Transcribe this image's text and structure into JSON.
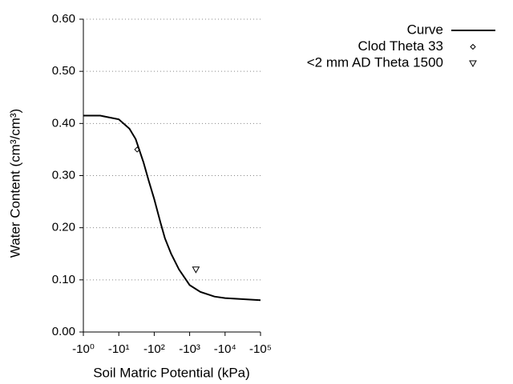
{
  "chart_data": {
    "type": "line",
    "xlabel": "Soil Matric Potential (kPa)",
    "ylabel": "Water Content (cm³/cm³)",
    "xscale": "log",
    "xlim": [
      -1,
      -100000
    ],
    "xticks": [
      {
        "value": -1,
        "label": "-10⁰"
      },
      {
        "value": -10,
        "label": "-10¹"
      },
      {
        "value": -100,
        "label": "-10²"
      },
      {
        "value": -1000,
        "label": "-10³"
      },
      {
        "value": -10000,
        "label": "-10⁴"
      },
      {
        "value": -100000,
        "label": "-10⁵"
      }
    ],
    "ylim": [
      0,
      0.6
    ],
    "yticks": [
      {
        "value": 0,
        "label": "0.00"
      },
      {
        "value": 0.1,
        "label": "0.10"
      },
      {
        "value": 0.2,
        "label": "0.20"
      },
      {
        "value": 0.3,
        "label": "0.30"
      },
      {
        "value": 0.4,
        "label": "0.40"
      },
      {
        "value": 0.5,
        "label": "0.50"
      },
      {
        "value": 0.6,
        "label": "0.60"
      }
    ],
    "grid": true,
    "legend": "right",
    "series": [
      {
        "name": "Curve",
        "color": "#000000",
        "marker": "none",
        "x": [
          -1,
          -3,
          -10,
          -20,
          -30,
          -50,
          -70,
          -100,
          -150,
          -200,
          -300,
          -500,
          -1000,
          -2000,
          -5000,
          -10000,
          -100000
        ],
        "values": [
          0.415,
          0.415,
          0.408,
          0.39,
          0.37,
          0.325,
          0.29,
          0.255,
          0.21,
          0.18,
          0.15,
          0.12,
          0.09,
          0.077,
          0.068,
          0.065,
          0.061
        ]
      },
      {
        "name": "Clod Theta 33",
        "color": "#000000",
        "marker": "diamond",
        "x": [
          -33
        ],
        "values": [
          0.35
        ]
      },
      {
        "name": "<2 mm AD Theta 1500",
        "color": "#000000",
        "marker": "triangle",
        "x": [
          -1500
        ],
        "values": [
          0.12
        ]
      }
    ]
  }
}
